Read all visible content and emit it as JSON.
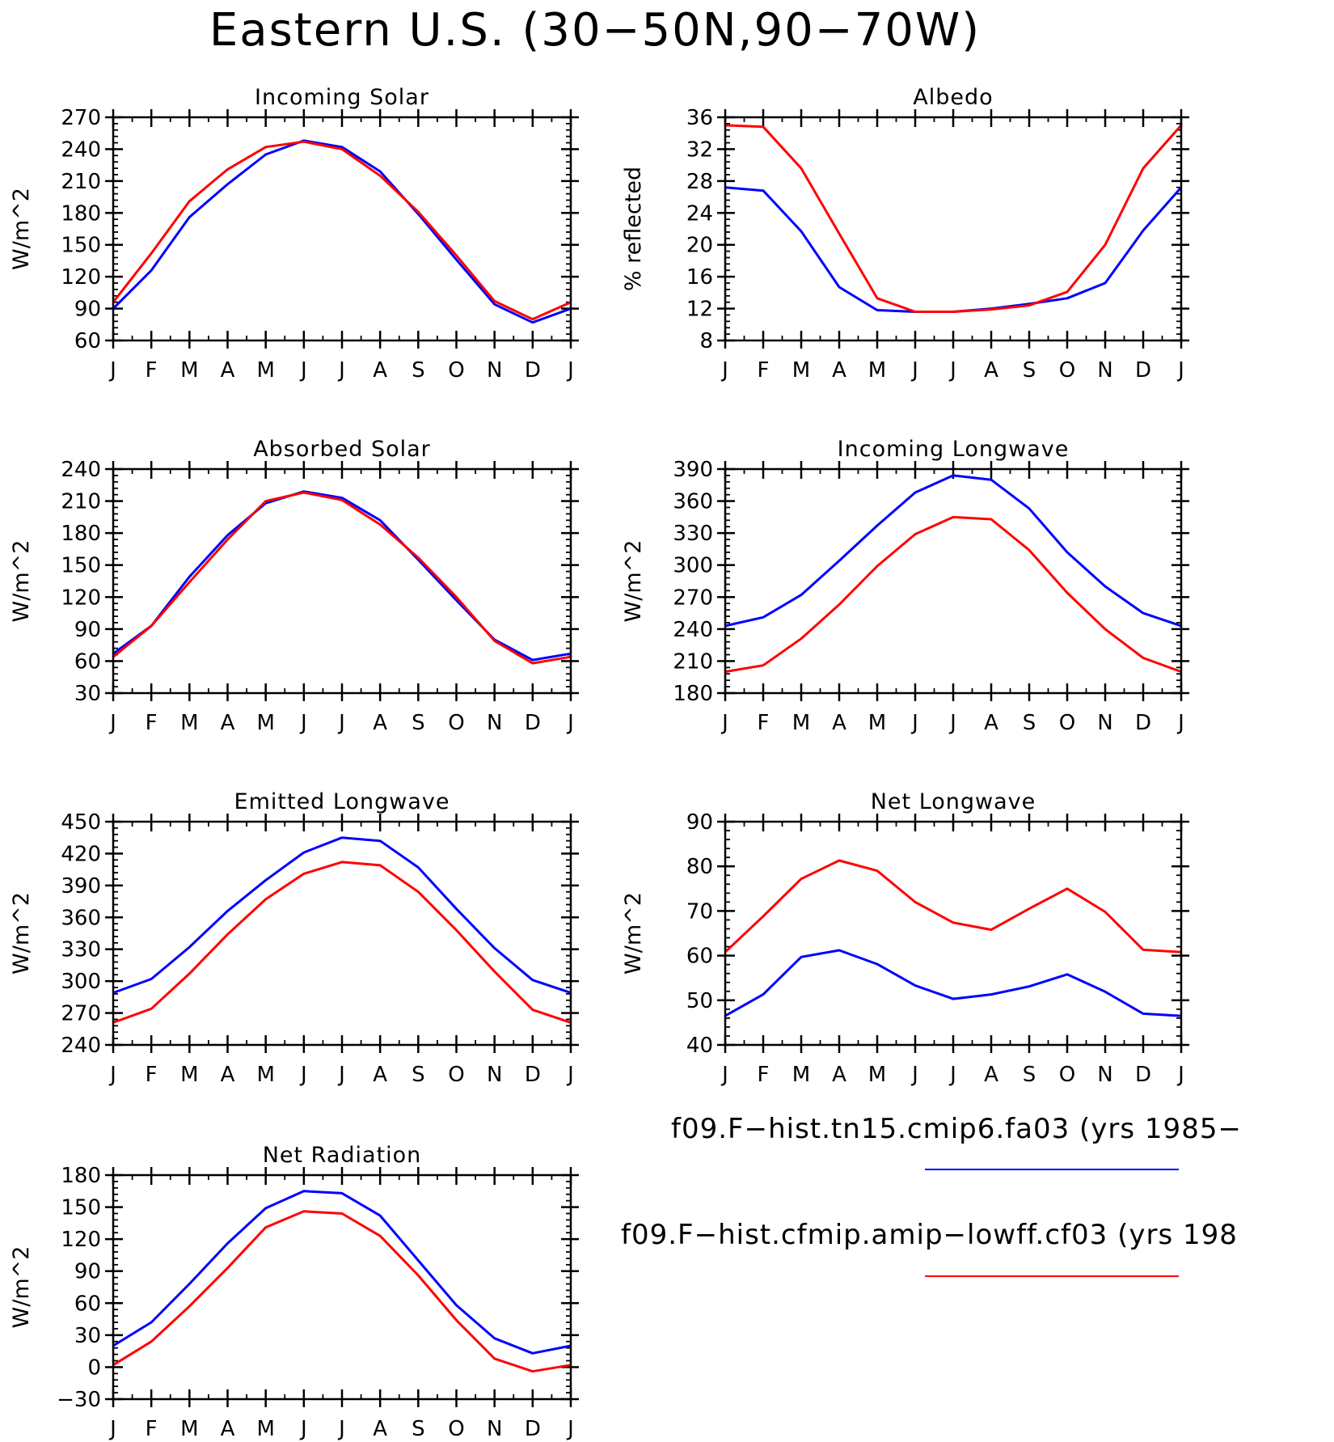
{
  "title": "Eastern U.S. (30-50N,90-70W)",
  "colors": {
    "series1": "#0000ff",
    "series2": "#ff0000"
  },
  "legend": [
    {
      "label": "f09.F-hist.tn15.cmip6.fa03 (yrs 1985-",
      "color": "#0000ff"
    },
    {
      "label": "f09.F-hist.cfmip.amip-lowff.cf03 (yrs 198",
      "color": "#ff0000"
    }
  ],
  "chart_data": [
    {
      "type": "line",
      "title": "Incoming Solar",
      "ylabel": "W/m^2",
      "categories": [
        "J",
        "F",
        "M",
        "A",
        "M",
        "J",
        "J",
        "A",
        "S",
        "O",
        "N",
        "D",
        "J"
      ],
      "ylim": [
        60,
        270
      ],
      "yticks": [
        60,
        90,
        120,
        150,
        180,
        210,
        240,
        270
      ],
      "series": [
        {
          "color": "#0000ff",
          "values": [
            90,
            126,
            176,
            207,
            235,
            248,
            242,
            219,
            179,
            136,
            94,
            77,
            90
          ]
        },
        {
          "color": "#ff0000",
          "values": [
            96,
            142,
            191,
            221,
            242,
            247,
            240,
            215,
            181,
            140,
            97,
            80,
            96
          ]
        }
      ]
    },
    {
      "type": "line",
      "title": "Albedo",
      "ylabel": "% reflected",
      "categories": [
        "J",
        "F",
        "M",
        "A",
        "M",
        "J",
        "J",
        "A",
        "S",
        "O",
        "N",
        "D",
        "J"
      ],
      "ylim": [
        8,
        36
      ],
      "yticks": [
        8,
        12,
        16,
        20,
        24,
        28,
        32,
        36
      ],
      "series": [
        {
          "color": "#0000ff",
          "values": [
            27.2,
            26.8,
            21.7,
            14.7,
            11.8,
            11.6,
            11.6,
            12.0,
            12.6,
            13.3,
            15.2,
            21.8,
            27.2
          ]
        },
        {
          "color": "#ff0000",
          "values": [
            35.0,
            34.8,
            29.6,
            21.4,
            13.3,
            11.6,
            11.6,
            11.9,
            12.4,
            14.1,
            20.0,
            29.6,
            35.0
          ]
        }
      ]
    },
    {
      "type": "line",
      "title": "Absorbed Solar",
      "ylabel": "W/m^2",
      "categories": [
        "J",
        "F",
        "M",
        "A",
        "M",
        "J",
        "J",
        "A",
        "S",
        "O",
        "N",
        "D",
        "J"
      ],
      "ylim": [
        30,
        240
      ],
      "yticks": [
        30,
        60,
        90,
        120,
        150,
        180,
        210,
        240
      ],
      "series": [
        {
          "color": "#0000ff",
          "values": [
            67,
            93,
            139,
            178,
            208,
            219,
            213,
            192,
            155,
            117,
            80,
            61,
            67
          ]
        },
        {
          "color": "#ff0000",
          "values": [
            64,
            93,
            134,
            174,
            210,
            218,
            211,
            188,
            157,
            120,
            79,
            58,
            64
          ]
        }
      ]
    },
    {
      "type": "line",
      "title": "Incoming Longwave",
      "ylabel": "W/m^2",
      "categories": [
        "J",
        "F",
        "M",
        "A",
        "M",
        "J",
        "J",
        "A",
        "S",
        "O",
        "N",
        "D",
        "J"
      ],
      "ylim": [
        180,
        390
      ],
      "yticks": [
        180,
        210,
        240,
        270,
        300,
        330,
        360,
        390
      ],
      "series": [
        {
          "color": "#0000ff",
          "values": [
            243,
            251,
            272,
            304,
            337,
            368,
            384,
            380,
            353,
            312,
            280,
            255,
            243
          ]
        },
        {
          "color": "#ff0000",
          "values": [
            200,
            206,
            231,
            263,
            299,
            329,
            345,
            343,
            314,
            274,
            240,
            213,
            200
          ]
        }
      ]
    },
    {
      "type": "line",
      "title": "Emitted Longwave",
      "ylabel": "W/m^2",
      "categories": [
        "J",
        "F",
        "M",
        "A",
        "M",
        "J",
        "J",
        "A",
        "S",
        "O",
        "N",
        "D",
        "J"
      ],
      "ylim": [
        240,
        450
      ],
      "yticks": [
        240,
        270,
        300,
        330,
        360,
        390,
        420,
        450
      ],
      "series": [
        {
          "color": "#0000ff",
          "values": [
            289,
            302,
            332,
            366,
            395,
            421,
            435,
            432,
            407,
            368,
            331,
            301,
            289
          ]
        },
        {
          "color": "#ff0000",
          "values": [
            261,
            274,
            307,
            344,
            377,
            401,
            412,
            409,
            384,
            348,
            309,
            273,
            261
          ]
        }
      ]
    },
    {
      "type": "line",
      "title": "Net Longwave",
      "ylabel": "W/m^2",
      "categories": [
        "J",
        "F",
        "M",
        "A",
        "M",
        "J",
        "J",
        "A",
        "S",
        "O",
        "N",
        "D",
        "J"
      ],
      "ylim": [
        40,
        90
      ],
      "yticks": [
        40,
        50,
        60,
        70,
        80,
        90
      ],
      "series": [
        {
          "color": "#0000ff",
          "values": [
            46.5,
            51.3,
            59.7,
            61.2,
            58.1,
            53.3,
            50.3,
            51.3,
            53.1,
            55.8,
            51.9,
            47.0,
            46.5
          ]
        },
        {
          "color": "#ff0000",
          "values": [
            60.8,
            68.8,
            77.2,
            81.3,
            79.0,
            72.0,
            67.4,
            65.8,
            70.5,
            75.0,
            69.8,
            61.3,
            60.8
          ]
        }
      ]
    },
    {
      "type": "line",
      "title": "Net Radiation",
      "ylabel": "W/m^2",
      "categories": [
        "J",
        "F",
        "M",
        "A",
        "M",
        "J",
        "J",
        "A",
        "S",
        "O",
        "N",
        "D",
        "J"
      ],
      "ylim": [
        -30,
        180
      ],
      "yticks": [
        -30,
        0,
        30,
        60,
        90,
        120,
        150,
        180
      ],
      "series": [
        {
          "color": "#0000ff",
          "values": [
            20,
            42,
            78,
            116,
            149,
            165,
            163,
            142,
            100,
            58,
            27,
            13,
            20
          ]
        },
        {
          "color": "#ff0000",
          "values": [
            2,
            24,
            57,
            93,
            131,
            146,
            144,
            123,
            86,
            44,
            8,
            -4,
            2
          ]
        }
      ]
    }
  ]
}
